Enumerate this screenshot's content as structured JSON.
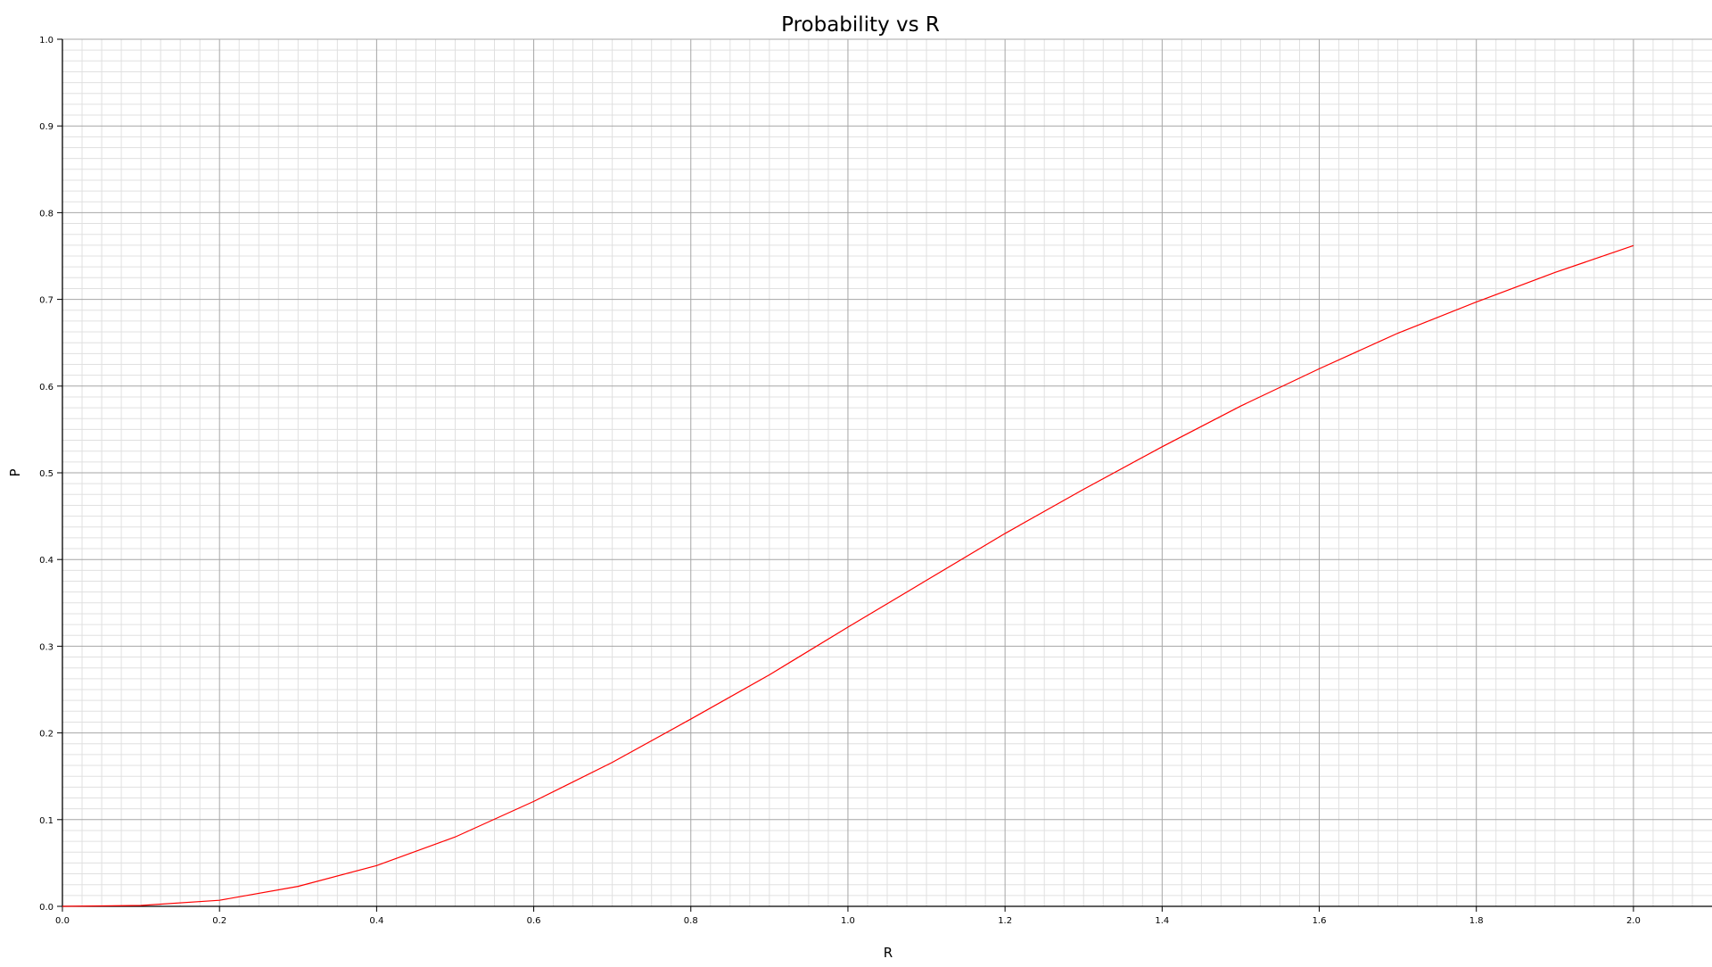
{
  "chart_data": {
    "type": "line",
    "title": "Probability vs R",
    "xlabel": "R",
    "ylabel": "P",
    "xlim": [
      0.0,
      2.1
    ],
    "ylim": [
      0.0,
      1.0
    ],
    "grid": true,
    "x_ticks": [
      "0.0",
      "0.2",
      "0.4",
      "0.6",
      "0.8",
      "1.0",
      "1.2",
      "1.4",
      "1.6",
      "1.8",
      "2.0"
    ],
    "y_ticks": [
      "0.0",
      "0.1",
      "0.2",
      "0.3",
      "0.4",
      "0.5",
      "0.6",
      "0.7",
      "0.8",
      "0.9",
      "1.0"
    ],
    "series": [
      {
        "color": "#ff0000",
        "x": [
          0.0,
          0.1,
          0.2,
          0.3,
          0.4,
          0.5,
          0.6,
          0.7,
          0.8,
          0.9,
          1.0,
          1.1,
          1.2,
          1.3,
          1.4,
          1.5,
          1.6,
          1.7,
          1.8,
          1.9,
          2.0
        ],
        "y": [
          0.0,
          0.001,
          0.007,
          0.023,
          0.047,
          0.08,
          0.121,
          0.166,
          0.216,
          0.267,
          0.322,
          0.376,
          0.43,
          0.481,
          0.53,
          0.577,
          0.62,
          0.661,
          0.697,
          0.731,
          0.762
        ]
      }
    ]
  }
}
